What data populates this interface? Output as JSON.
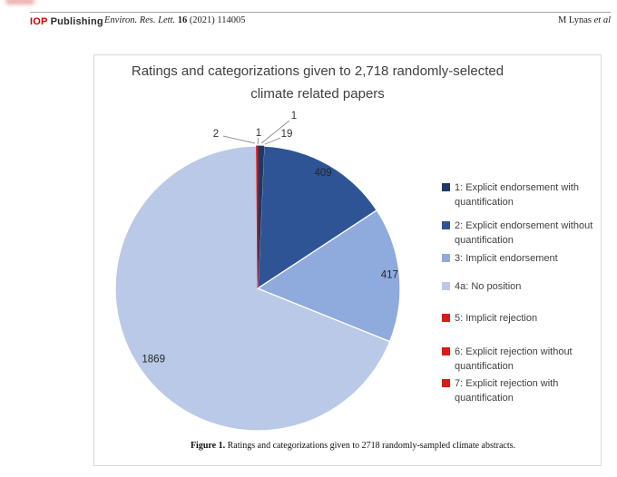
{
  "header": {
    "publisher_bold": "IOP",
    "publisher_rest": "Publishing",
    "journal_name": "Environ. Res. Lett.",
    "journal_volume": "16",
    "journal_issue": "(2021) 114005",
    "authors": "M Lynas",
    "authors_etal": "et al"
  },
  "figure": {
    "title_line1": "Ratings and categorizations given to 2,718 randomly-selected",
    "title_line2": "climate related papers",
    "caption_label": "Figure 1.",
    "caption_text": " Ratings and categorizations given to 2718 randomly-sampled climate abstracts."
  },
  "chart_data": {
    "type": "pie",
    "title": "Ratings and categorizations given to 2,718 randomly-selected climate related papers",
    "total": 2718,
    "categories": [
      "1: Explicit endorsement with quantification",
      "2: Explicit endorsement without quantification",
      "3: Implicit endorsement",
      "4a: No position",
      "5: Implicit rejection",
      "6: Explicit rejection without quantification",
      "7: Explicit rejection with quantification"
    ],
    "values": [
      19,
      409,
      417,
      1869,
      2,
      1,
      1
    ],
    "colors": [
      "#1F3864",
      "#2F5496",
      "#8FAADC",
      "#B9C9E7",
      "#E01818",
      "#E01818",
      "#E01818"
    ],
    "data_labels": [
      "19",
      "409",
      "417",
      "1869",
      "2",
      "1",
      "1"
    ],
    "legend_position": "right",
    "start_angle_deg": 0,
    "direction": "clockwise",
    "label_color": "#262626",
    "leader_line_color": "#8c8c8c"
  }
}
